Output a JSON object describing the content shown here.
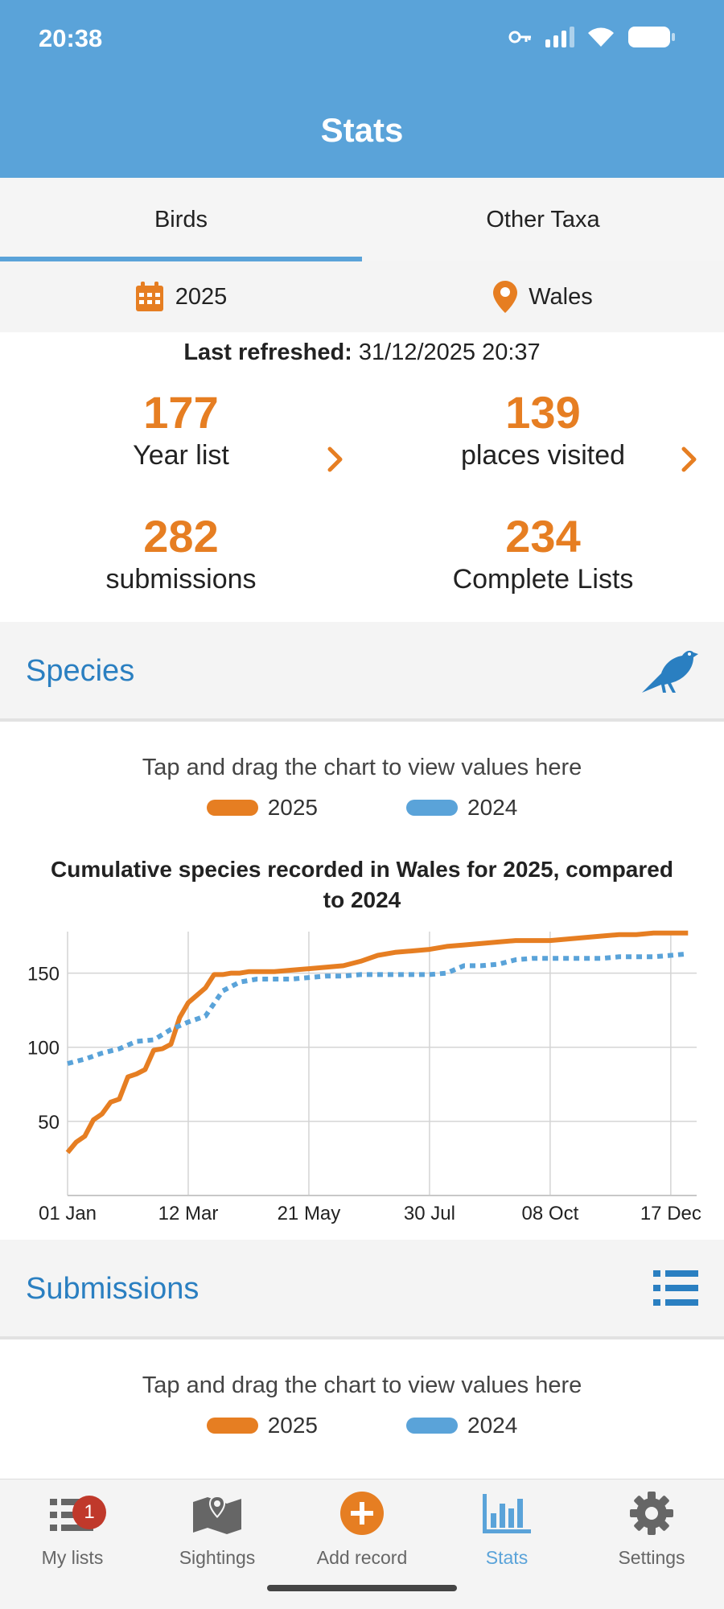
{
  "status_bar": {
    "time": "20:38"
  },
  "header": {
    "title": "Stats"
  },
  "tabs": [
    {
      "label": "Birds",
      "active": true
    },
    {
      "label": "Other Taxa",
      "active": false
    }
  ],
  "filters": {
    "year": "2025",
    "location": "Wales"
  },
  "refreshed": {
    "label": "Last refreshed:",
    "value": "31/12/2025 20:37"
  },
  "stats": {
    "year_list": {
      "value": "177",
      "label": "Year list"
    },
    "places": {
      "value": "139",
      "label": "places visited"
    },
    "submissions": {
      "value": "282",
      "label": "submissions"
    },
    "complete": {
      "value": "234",
      "label": "Complete Lists"
    }
  },
  "species_section": {
    "title": "Species",
    "hint": "Tap and drag the chart to view values here",
    "legend": [
      "2025",
      "2024"
    ]
  },
  "submissions_section": {
    "title": "Submissions",
    "hint": "Tap and drag the chart to view values here",
    "legend": [
      "2025",
      "2024"
    ]
  },
  "colors": {
    "accent_orange": "#e67e22",
    "accent_blue": "#5aa3d9",
    "title_blue": "#2a7fc1"
  },
  "chart_data": {
    "type": "line",
    "title": "Cumulative species recorded in Wales for 2025, compared to 2024",
    "x_tick_labels": [
      "01 Jan",
      "12 Mar",
      "21 May",
      "30 Jul",
      "08 Oct",
      "17 Dec"
    ],
    "y_ticks": [
      50,
      100,
      150
    ],
    "ylim": [
      0,
      178
    ],
    "xlim_days": [
      0,
      365
    ],
    "grid": true,
    "series": [
      {
        "name": "2025",
        "color": "#e67e22",
        "style": "solid",
        "x": [
          0,
          5,
          10,
          15,
          20,
          25,
          30,
          35,
          40,
          45,
          50,
          55,
          60,
          65,
          70,
          75,
          80,
          85,
          90,
          95,
          100,
          105,
          110,
          115,
          120,
          130,
          140,
          150,
          160,
          170,
          180,
          190,
          200,
          210,
          220,
          230,
          240,
          250,
          260,
          270,
          280,
          290,
          300,
          310,
          320,
          330,
          340,
          350,
          360
        ],
        "y": [
          29,
          36,
          40,
          51,
          55,
          63,
          65,
          80,
          82,
          85,
          98,
          99,
          102,
          120,
          130,
          135,
          140,
          149,
          149,
          150,
          150,
          151,
          151,
          151,
          151,
          152,
          153,
          154,
          155,
          158,
          162,
          164,
          165,
          166,
          168,
          169,
          170,
          171,
          172,
          172,
          172,
          173,
          174,
          175,
          176,
          176,
          177,
          177,
          177
        ]
      },
      {
        "name": "2024",
        "color": "#5aa3d9",
        "style": "dotted",
        "x": [
          0,
          10,
          20,
          30,
          40,
          50,
          60,
          70,
          80,
          90,
          100,
          110,
          120,
          130,
          140,
          150,
          160,
          170,
          180,
          190,
          200,
          210,
          220,
          230,
          240,
          250,
          260,
          270,
          280,
          290,
          300,
          310,
          320,
          330,
          340,
          350,
          360
        ],
        "y": [
          89,
          92,
          96,
          99,
          104,
          105,
          112,
          117,
          121,
          138,
          144,
          146,
          146,
          146,
          147,
          148,
          148,
          149,
          149,
          149,
          149,
          149,
          150,
          155,
          155,
          156,
          159,
          160,
          160,
          160,
          160,
          160,
          161,
          161,
          161,
          162,
          163
        ]
      }
    ]
  },
  "nav": [
    {
      "label": "My lists",
      "badge": "1"
    },
    {
      "label": "Sightings"
    },
    {
      "label": "Add record"
    },
    {
      "label": "Stats",
      "active": true
    },
    {
      "label": "Settings"
    }
  ]
}
